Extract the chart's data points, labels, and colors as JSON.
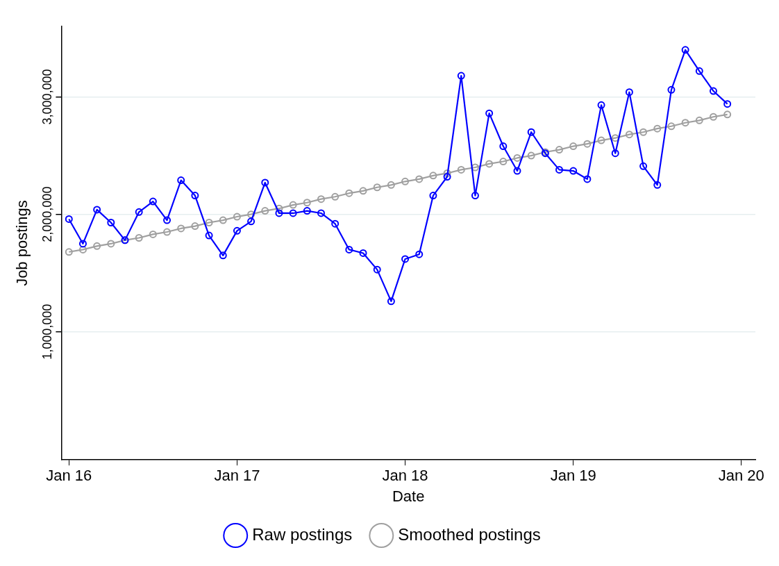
{
  "chart_data": {
    "type": "line",
    "xlabel": "Date",
    "ylabel": "Job postings",
    "x": [
      "2016-01",
      "2016-02",
      "2016-03",
      "2016-04",
      "2016-05",
      "2016-06",
      "2016-07",
      "2016-08",
      "2016-09",
      "2016-10",
      "2016-11",
      "2016-12",
      "2017-01",
      "2017-02",
      "2017-03",
      "2017-04",
      "2017-05",
      "2017-06",
      "2017-07",
      "2017-08",
      "2017-09",
      "2017-10",
      "2017-11",
      "2017-12",
      "2018-01",
      "2018-02",
      "2018-03",
      "2018-04",
      "2018-05",
      "2018-06",
      "2018-07",
      "2018-08",
      "2018-09",
      "2018-10",
      "2018-11",
      "2018-12",
      "2019-01",
      "2019-02",
      "2019-03",
      "2019-04",
      "2019-05",
      "2019-06",
      "2019-07",
      "2019-08",
      "2019-09",
      "2019-10",
      "2019-11",
      "2019-12"
    ],
    "series": [
      {
        "name": "Raw postings",
        "color": "#0000ff",
        "values": [
          1960000,
          1750000,
          2040000,
          1930000,
          1780000,
          2020000,
          2110000,
          1950000,
          2290000,
          2160000,
          1820000,
          1650000,
          1860000,
          1940000,
          2270000,
          2010000,
          2010000,
          2030000,
          2010000,
          1920000,
          1700000,
          1670000,
          1530000,
          1260000,
          1620000,
          1660000,
          2160000,
          2320000,
          3180000,
          2160000,
          2860000,
          2580000,
          2370000,
          2700000,
          2520000,
          2380000,
          2370000,
          2300000,
          2930000,
          2520000,
          3040000,
          2410000,
          2250000,
          3060000,
          3400000,
          3220000,
          3050000,
          2940000
        ]
      },
      {
        "name": "Smoothed postings",
        "color": "#a0a0a0",
        "values": [
          1680000,
          1700000,
          1730000,
          1750000,
          1780000,
          1800000,
          1830000,
          1850000,
          1880000,
          1900000,
          1930000,
          1950000,
          1980000,
          2000000,
          2030000,
          2050000,
          2080000,
          2100000,
          2130000,
          2150000,
          2180000,
          2200000,
          2230000,
          2250000,
          2280000,
          2300000,
          2330000,
          2350000,
          2380000,
          2400000,
          2430000,
          2450000,
          2480000,
          2500000,
          2530000,
          2550000,
          2580000,
          2600000,
          2630000,
          2650000,
          2680000,
          2700000,
          2730000,
          2750000,
          2780000,
          2800000,
          2830000,
          2850000
        ]
      }
    ],
    "xlim": [
      "2015-12-15",
      "2020-02-01"
    ],
    "xticks": [
      {
        "value": "2016-01",
        "label": "Jan 16"
      },
      {
        "value": "2017-01",
        "label": "Jan 17"
      },
      {
        "value": "2018-01",
        "label": "Jan 18"
      },
      {
        "value": "2019-01",
        "label": "Jan 19"
      },
      {
        "value": "2020-01",
        "label": "Jan 20"
      }
    ],
    "ylim": [
      -90000,
      3600000
    ],
    "yticks": [
      {
        "value": 1000000,
        "label": "1,000,000"
      },
      {
        "value": 2000000,
        "label": "2,000,000"
      },
      {
        "value": 3000000,
        "label": "3,000,000"
      }
    ],
    "grid": "y",
    "legend": "bottom",
    "marker": "circle",
    "line_style": "solid"
  }
}
